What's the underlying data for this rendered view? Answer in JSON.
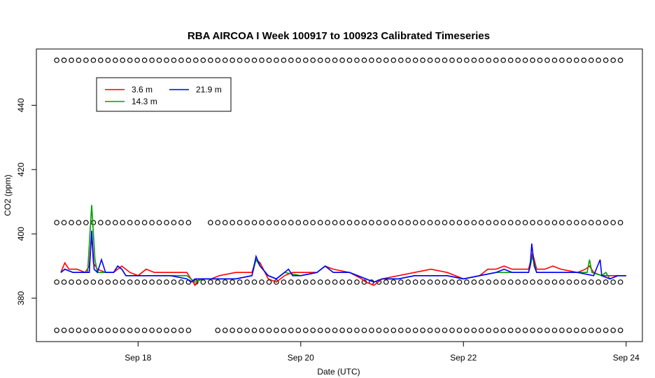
{
  "chart_data": {
    "type": "line",
    "title": "RBA AIRCOA I  Week 100917 to 100923  Calibrated Timeseries",
    "xlabel": "Date (UTC)",
    "ylabel": "CO2 (ppm)",
    "x_tick_labels": [
      "Sep 18",
      "Sep 20",
      "Sep 22",
      "Sep 24"
    ],
    "x_tick_values": [
      18,
      20,
      22,
      24
    ],
    "xlim": [
      16.75,
      24.2
    ],
    "y_ticks": [
      380,
      400,
      420,
      440
    ],
    "ylim": [
      366.5,
      457.5
    ],
    "grid": false,
    "legend_position": "top-left",
    "series": [
      {
        "name": "3.6 m",
        "color": "#ff0000",
        "points": [
          [
            17.05,
            388
          ],
          [
            17.1,
            391
          ],
          [
            17.15,
            389
          ],
          [
            17.25,
            389
          ],
          [
            17.35,
            388
          ],
          [
            17.4,
            390
          ],
          [
            17.43,
            400
          ],
          [
            17.45,
            391
          ],
          [
            17.5,
            389
          ],
          [
            17.6,
            388
          ],
          [
            17.7,
            388
          ],
          [
            17.75,
            389
          ],
          [
            17.8,
            390
          ],
          [
            17.9,
            388
          ],
          [
            18.0,
            387
          ],
          [
            18.1,
            389
          ],
          [
            18.2,
            388
          ],
          [
            18.4,
            388
          ],
          [
            18.6,
            388
          ],
          [
            18.65,
            386
          ],
          [
            18.7,
            384
          ],
          [
            18.75,
            386
          ],
          [
            18.9,
            386
          ],
          [
            19.0,
            387
          ],
          [
            19.2,
            388
          ],
          [
            19.4,
            388
          ],
          [
            19.45,
            392
          ],
          [
            19.5,
            391
          ],
          [
            19.6,
            386
          ],
          [
            19.7,
            385
          ],
          [
            19.8,
            387
          ],
          [
            19.9,
            388
          ],
          [
            20.0,
            388
          ],
          [
            20.2,
            388
          ],
          [
            20.3,
            390
          ],
          [
            20.4,
            389
          ],
          [
            20.6,
            388
          ],
          [
            20.75,
            386
          ],
          [
            20.8,
            385
          ],
          [
            20.9,
            384
          ],
          [
            21.0,
            386
          ],
          [
            21.2,
            387
          ],
          [
            21.4,
            388
          ],
          [
            21.6,
            389
          ],
          [
            21.8,
            388
          ],
          [
            22.0,
            386
          ],
          [
            22.2,
            387
          ],
          [
            22.3,
            389
          ],
          [
            22.4,
            389
          ],
          [
            22.5,
            390
          ],
          [
            22.6,
            389
          ],
          [
            22.7,
            389
          ],
          [
            22.8,
            389
          ],
          [
            22.85,
            394
          ],
          [
            22.9,
            389
          ],
          [
            23.0,
            389
          ],
          [
            23.1,
            390
          ],
          [
            23.2,
            389
          ],
          [
            23.4,
            388
          ],
          [
            23.5,
            389
          ],
          [
            23.55,
            390
          ],
          [
            23.6,
            388
          ],
          [
            23.7,
            387
          ],
          [
            23.8,
            387
          ],
          [
            23.9,
            387
          ],
          [
            24.0,
            387
          ]
        ]
      },
      {
        "name": "14.3 m",
        "color": "#00a000",
        "points": [
          [
            17.05,
            388
          ],
          [
            17.1,
            389
          ],
          [
            17.2,
            388
          ],
          [
            17.3,
            388
          ],
          [
            17.38,
            388
          ],
          [
            17.43,
            409
          ],
          [
            17.47,
            392
          ],
          [
            17.5,
            388
          ],
          [
            17.6,
            388
          ],
          [
            17.7,
            388
          ],
          [
            17.75,
            390
          ],
          [
            17.8,
            389
          ],
          [
            17.85,
            387
          ],
          [
            18.0,
            387
          ],
          [
            18.2,
            387
          ],
          [
            18.4,
            387
          ],
          [
            18.6,
            387
          ],
          [
            18.7,
            385
          ],
          [
            18.8,
            386
          ],
          [
            19.0,
            386
          ],
          [
            19.2,
            386
          ],
          [
            19.4,
            387
          ],
          [
            19.45,
            392
          ],
          [
            19.5,
            390
          ],
          [
            19.6,
            387
          ],
          [
            19.7,
            386
          ],
          [
            19.8,
            388
          ],
          [
            20.0,
            387
          ],
          [
            20.2,
            388
          ],
          [
            20.3,
            390
          ],
          [
            20.4,
            388
          ],
          [
            20.6,
            388
          ],
          [
            20.8,
            386
          ],
          [
            20.9,
            385
          ],
          [
            21.0,
            386
          ],
          [
            21.2,
            386
          ],
          [
            21.4,
            387
          ],
          [
            21.6,
            387
          ],
          [
            21.8,
            387
          ],
          [
            22.0,
            386
          ],
          [
            22.2,
            387
          ],
          [
            22.4,
            388
          ],
          [
            22.6,
            388
          ],
          [
            22.8,
            388
          ],
          [
            22.85,
            393
          ],
          [
            22.9,
            388
          ],
          [
            23.0,
            388
          ],
          [
            23.2,
            388
          ],
          [
            23.4,
            388
          ],
          [
            23.52,
            388
          ],
          [
            23.55,
            392
          ],
          [
            23.58,
            388
          ],
          [
            23.7,
            387
          ],
          [
            23.75,
            388
          ],
          [
            23.8,
            386
          ],
          [
            23.9,
            387
          ],
          [
            24.0,
            387
          ]
        ]
      },
      {
        "name": "21.9 m",
        "color": "#0000ff",
        "points": [
          [
            17.05,
            388
          ],
          [
            17.1,
            389
          ],
          [
            17.2,
            388
          ],
          [
            17.35,
            388
          ],
          [
            17.4,
            388
          ],
          [
            17.43,
            401
          ],
          [
            17.46,
            389
          ],
          [
            17.5,
            388
          ],
          [
            17.55,
            392
          ],
          [
            17.6,
            388
          ],
          [
            17.7,
            388
          ],
          [
            17.75,
            390
          ],
          [
            17.8,
            389
          ],
          [
            17.85,
            387
          ],
          [
            18.0,
            387
          ],
          [
            18.2,
            387
          ],
          [
            18.4,
            387
          ],
          [
            18.6,
            386
          ],
          [
            18.65,
            385
          ],
          [
            18.7,
            386
          ],
          [
            18.9,
            386
          ],
          [
            19.0,
            386
          ],
          [
            19.2,
            386
          ],
          [
            19.4,
            387
          ],
          [
            19.45,
            393
          ],
          [
            19.5,
            390
          ],
          [
            19.6,
            387
          ],
          [
            19.7,
            386
          ],
          [
            19.8,
            388
          ],
          [
            19.85,
            389
          ],
          [
            19.9,
            387
          ],
          [
            20.0,
            387
          ],
          [
            20.2,
            388
          ],
          [
            20.3,
            390
          ],
          [
            20.4,
            388
          ],
          [
            20.6,
            388
          ],
          [
            20.7,
            387
          ],
          [
            20.8,
            386
          ],
          [
            20.9,
            385
          ],
          [
            21.0,
            386
          ],
          [
            21.2,
            386
          ],
          [
            21.4,
            387
          ],
          [
            21.6,
            387
          ],
          [
            21.8,
            387
          ],
          [
            22.0,
            386
          ],
          [
            22.2,
            387
          ],
          [
            22.4,
            388
          ],
          [
            22.5,
            389
          ],
          [
            22.6,
            388
          ],
          [
            22.8,
            388
          ],
          [
            22.82,
            390
          ],
          [
            22.84,
            397
          ],
          [
            22.87,
            390
          ],
          [
            22.9,
            388
          ],
          [
            23.0,
            388
          ],
          [
            23.2,
            388
          ],
          [
            23.4,
            388
          ],
          [
            23.6,
            387
          ],
          [
            23.68,
            392
          ],
          [
            23.7,
            387
          ],
          [
            23.8,
            386
          ],
          [
            23.9,
            387
          ],
          [
            24.0,
            387
          ]
        ]
      }
    ],
    "reference_marker_rows": [
      454,
      403.5,
      385,
      370
    ]
  }
}
